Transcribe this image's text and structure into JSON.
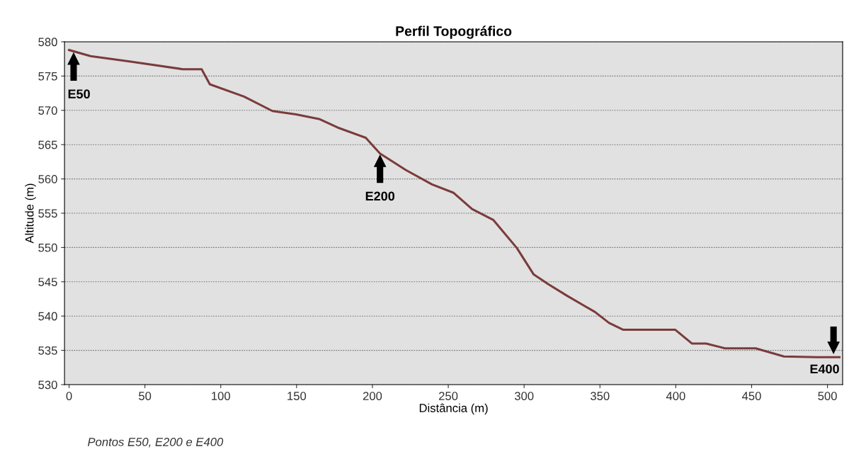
{
  "chart_data": {
    "type": "line",
    "title": "Perfil Topográfico",
    "xlabel": "Distância (m)",
    "ylabel": "Altitude (m)",
    "x": [
      0,
      14.2,
      40.7,
      74.9,
      87.4,
      92.8,
      115.4,
      134.1,
      149.7,
      165.3,
      177,
      195.6,
      205,
      222,
      239.3,
      253.3,
      265.7,
      279.8,
      295.3,
      306.2,
      315.6,
      328,
      338.9,
      346.7,
      356,
      365.4,
      399.7,
      410.6,
      420,
      432.4,
      452.7,
      471.3,
      493.1,
      507.9
    ],
    "series": [
      {
        "color": "#7b3b3b",
        "values": [
          578.8,
          577.9,
          577.1,
          576.0,
          576.0,
          573.8,
          572.0,
          569.9,
          569.4,
          568.7,
          567.5,
          566.0,
          563.7,
          561.3,
          559.2,
          558.0,
          555.6,
          554.0,
          549.9,
          546.1,
          544.7,
          543.0,
          541.6,
          540.6,
          539.0,
          538.0,
          538.0,
          536.0,
          536.0,
          535.3,
          535.3,
          534.1,
          534.0,
          534.0
        ]
      }
    ],
    "xlim": [
      -3,
      510
    ],
    "ylim": [
      530,
      580
    ],
    "xticks": [
      0,
      50,
      100,
      150,
      200,
      250,
      300,
      350,
      400,
      450,
      500
    ],
    "yticks": [
      530,
      535,
      540,
      545,
      550,
      555,
      560,
      565,
      570,
      575,
      580
    ],
    "grid": "y",
    "legend": false,
    "annotations": [
      {
        "text": "E50",
        "x": 3,
        "y": 578.6
      },
      {
        "text": "E200",
        "x": 205,
        "y": 563.7
      },
      {
        "text": "E400",
        "x": 504,
        "y": 534.2
      },
      "Pontos E50, E200 e E400"
    ]
  }
}
